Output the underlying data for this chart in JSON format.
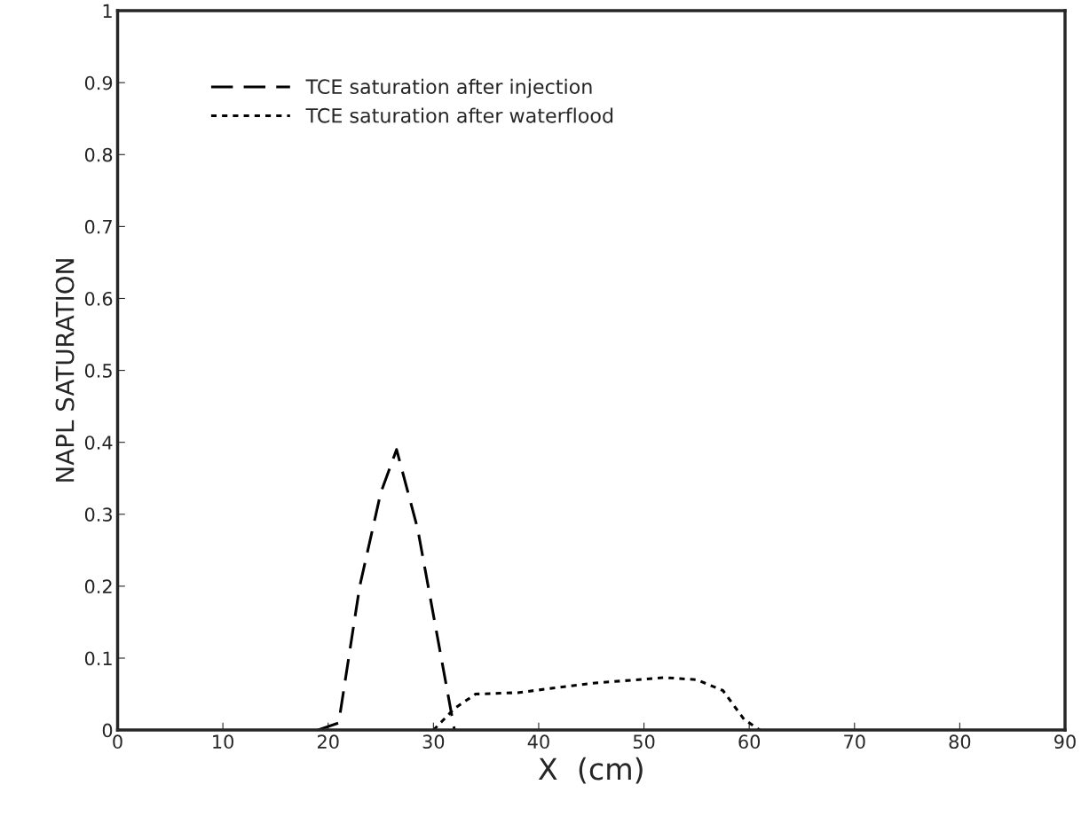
{
  "chart_data": {
    "type": "line",
    "xlabel": "X  (cm)",
    "ylabel": "NAPL SATURATION",
    "series": [
      {
        "name": "TCE saturation after injection",
        "color": "#000000",
        "line_style": "dashed",
        "x": [
          19,
          21,
          23,
          25,
          26.5,
          28.5,
          30.5,
          32
        ],
        "values": [
          0,
          0.01,
          0.2,
          0.33,
          0.39,
          0.28,
          0.12,
          0
        ]
      },
      {
        "name": "TCE saturation after waterflood",
        "color": "#000000",
        "line_style": "dotted",
        "x": [
          30,
          32,
          34,
          38,
          45,
          52,
          55,
          57.5,
          59.5,
          61
        ],
        "values": [
          0,
          0.03,
          0.05,
          0.052,
          0.065,
          0.073,
          0.07,
          0.055,
          0.015,
          0
        ]
      }
    ],
    "xlim": [
      0,
      90
    ],
    "ylim": [
      0,
      1
    ],
    "xticks": [
      0,
      10,
      20,
      30,
      40,
      50,
      60,
      70,
      80,
      90
    ],
    "yticks": [
      0,
      0.1,
      0.2,
      0.3,
      0.4,
      0.5,
      0.6,
      0.7,
      0.8,
      0.9,
      1
    ],
    "grid": false,
    "legend": "top left",
    "marker": "none"
  }
}
